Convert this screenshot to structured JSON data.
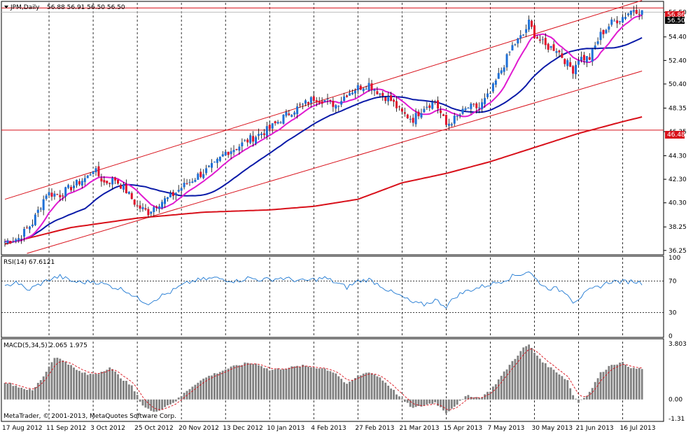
{
  "colors": {
    "background": "#ffffff",
    "grid": "#000000",
    "candle_up": "#1e6fd6",
    "candle_down": "#e0102a",
    "ma_fast": "#e01ad0",
    "ma_mid": "#0a1aa8",
    "ma_slow": "#d8101a",
    "channel": "#d8101a",
    "hline": "#d8101a",
    "rsi_line": "#1e78d2",
    "macd_bar": "#808080",
    "macd_signal": "#d8101a",
    "price_badge": "#d8101a"
  },
  "chart_data": {
    "type": "candlestick",
    "title": "JPM,Daily",
    "ohlc_readout": "56.88 56.91 56.50 56.50",
    "current_price_label": "56.86",
    "current_price_sublabel": "56.50",
    "level_label": "46.48",
    "price_ticks": [
      "56.50",
      "54.40",
      "52.40",
      "50.40",
      "48.35",
      "46.35",
      "44.30",
      "42.30",
      "40.30",
      "38.25",
      "36.25"
    ],
    "price_tick_values": [
      56.5,
      54.4,
      52.4,
      50.4,
      48.35,
      46.35,
      44.3,
      42.3,
      40.3,
      38.25,
      36.25
    ],
    "ylim": [
      36.0,
      57.3
    ],
    "x_labels": [
      "17 Aug 2012",
      "11 Sep 2012",
      "3 Oct 2012",
      "25 Oct 2012",
      "20 Nov 2012",
      "13 Dec 2012",
      "10 Jan 2013",
      "4 Feb 2013",
      "27 Feb 2013",
      "21 Mar 2013",
      "15 Apr 2013",
      "7 May 2013",
      "30 May 2013",
      "21 Jun 2013",
      "16 Jul 2013"
    ],
    "x_label_index": [
      0,
      16,
      32,
      48,
      64,
      80,
      96,
      112,
      128,
      144,
      160,
      176,
      192,
      208,
      224
    ],
    "n_bars": 232,
    "price_anchors": [
      [
        0,
        37.0
      ],
      [
        5,
        37.3
      ],
      [
        10,
        38.6
      ],
      [
        15,
        41.1
      ],
      [
        20,
        41.0
      ],
      [
        25,
        41.8
      ],
      [
        30,
        42.5
      ],
      [
        32,
        43.2
      ],
      [
        36,
        42.0
      ],
      [
        40,
        42.3
      ],
      [
        44,
        41.3
      ],
      [
        48,
        40.0
      ],
      [
        52,
        39.5
      ],
      [
        55,
        40.2
      ],
      [
        60,
        40.8
      ],
      [
        64,
        41.6
      ],
      [
        70,
        42.6
      ],
      [
        76,
        43.5
      ],
      [
        80,
        44.6
      ],
      [
        84,
        45.0
      ],
      [
        88,
        45.6
      ],
      [
        92,
        46.1
      ],
      [
        96,
        46.6
      ],
      [
        100,
        47.4
      ],
      [
        104,
        48.1
      ],
      [
        108,
        48.6
      ],
      [
        112,
        49.2
      ],
      [
        116,
        49.0
      ],
      [
        120,
        48.6
      ],
      [
        124,
        49.6
      ],
      [
        128,
        50.1
      ],
      [
        132,
        50.4
      ],
      [
        136,
        49.6
      ],
      [
        140,
        49.0
      ],
      [
        144,
        47.9
      ],
      [
        148,
        47.4
      ],
      [
        152,
        48.5
      ],
      [
        156,
        48.9
      ],
      [
        160,
        46.9
      ],
      [
        164,
        47.6
      ],
      [
        168,
        48.4
      ],
      [
        172,
        48.4
      ],
      [
        176,
        49.6
      ],
      [
        180,
        51.6
      ],
      [
        184,
        53.6
      ],
      [
        188,
        54.6
      ],
      [
        190,
        55.6
      ],
      [
        192,
        54.6
      ],
      [
        196,
        53.6
      ],
      [
        200,
        53.4
      ],
      [
        204,
        52.1
      ],
      [
        206,
        51.6
      ],
      [
        208,
        52.6
      ],
      [
        212,
        52.6
      ],
      [
        216,
        54.6
      ],
      [
        220,
        55.6
      ],
      [
        224,
        56.1
      ],
      [
        228,
        56.8
      ],
      [
        231,
        56.5
      ]
    ],
    "ma_slow_anchors": [
      [
        0,
        36.8
      ],
      [
        24,
        38.2
      ],
      [
        48,
        39.0
      ],
      [
        72,
        39.5
      ],
      [
        96,
        39.7
      ],
      [
        112,
        40.0
      ],
      [
        128,
        40.6
      ],
      [
        144,
        42.0
      ],
      [
        160,
        42.8
      ],
      [
        176,
        43.8
      ],
      [
        192,
        45.0
      ],
      [
        208,
        46.2
      ],
      [
        224,
        47.2
      ],
      [
        231,
        47.6
      ]
    ],
    "channel_lines": [
      {
        "from": [
          0,
          40.6
        ],
        "to": [
          231,
          57.5
        ]
      },
      {
        "from": [
          8,
          36.0
        ],
        "to": [
          231,
          51.5
        ]
      }
    ],
    "hlines": [
      56.86,
      46.48
    ],
    "rsi": {
      "label": "RSI(14) 67.6121",
      "ticks": [
        "100",
        "70",
        "30",
        "0"
      ],
      "tick_values": [
        100,
        70,
        30,
        0
      ],
      "levels": [
        70,
        30
      ],
      "anchors": [
        [
          0,
          62
        ],
        [
          4,
          70
        ],
        [
          8,
          58
        ],
        [
          12,
          65
        ],
        [
          16,
          72
        ],
        [
          20,
          76
        ],
        [
          24,
          70
        ],
        [
          28,
          68
        ],
        [
          32,
          70
        ],
        [
          36,
          66
        ],
        [
          40,
          62
        ],
        [
          44,
          58
        ],
        [
          48,
          48
        ],
        [
          52,
          42
        ],
        [
          56,
          50
        ],
        [
          60,
          56
        ],
        [
          64,
          64
        ],
        [
          68,
          70
        ],
        [
          72,
          72
        ],
        [
          76,
          74
        ],
        [
          80,
          72
        ],
        [
          84,
          70
        ],
        [
          88,
          74
        ],
        [
          92,
          72
        ],
        [
          96,
          72
        ],
        [
          100,
          74
        ],
        [
          104,
          72
        ],
        [
          108,
          70
        ],
        [
          112,
          72
        ],
        [
          116,
          74
        ],
        [
          120,
          68
        ],
        [
          124,
          62
        ],
        [
          128,
          70
        ],
        [
          132,
          72
        ],
        [
          136,
          65
        ],
        [
          140,
          56
        ],
        [
          144,
          50
        ],
        [
          148,
          42
        ],
        [
          152,
          40
        ],
        [
          156,
          46
        ],
        [
          160,
          38
        ],
        [
          164,
          52
        ],
        [
          168,
          58
        ],
        [
          172,
          62
        ],
        [
          176,
          66
        ],
        [
          180,
          70
        ],
        [
          184,
          76
        ],
        [
          188,
          80
        ],
        [
          190,
          83
        ],
        [
          192,
          74
        ],
        [
          196,
          62
        ],
        [
          200,
          60
        ],
        [
          204,
          55
        ],
        [
          206,
          44
        ],
        [
          208,
          48
        ],
        [
          212,
          58
        ],
        [
          216,
          64
        ],
        [
          220,
          70
        ],
        [
          224,
          69
        ],
        [
          228,
          70
        ],
        [
          231,
          67.6
        ]
      ]
    },
    "macd": {
      "label": "MACD(5,34,5) 2.065 1.975",
      "ticks": [
        "3.803",
        "0.00",
        "-1.31"
      ],
      "tick_values": [
        3.803,
        0,
        -1.31
      ],
      "ylim": [
        -1.4,
        3.95
      ],
      "anchors": [
        [
          0,
          1.2
        ],
        [
          6,
          0.8
        ],
        [
          10,
          0.6
        ],
        [
          14,
          1.6
        ],
        [
          18,
          2.9
        ],
        [
          22,
          2.6
        ],
        [
          26,
          2.0
        ],
        [
          30,
          1.7
        ],
        [
          34,
          1.8
        ],
        [
          38,
          2.2
        ],
        [
          42,
          1.5
        ],
        [
          46,
          0.9
        ],
        [
          50,
          -0.4
        ],
        [
          54,
          -0.9
        ],
        [
          58,
          -0.5
        ],
        [
          62,
          -0.1
        ],
        [
          66,
          0.6
        ],
        [
          70,
          1.2
        ],
        [
          74,
          1.6
        ],
        [
          78,
          1.9
        ],
        [
          82,
          2.2
        ],
        [
          88,
          2.5
        ],
        [
          92,
          2.4
        ],
        [
          96,
          2.0
        ],
        [
          100,
          2.1
        ],
        [
          104,
          2.2
        ],
        [
          108,
          2.3
        ],
        [
          112,
          2.2
        ],
        [
          116,
          2.1
        ],
        [
          120,
          1.8
        ],
        [
          124,
          1.0
        ],
        [
          128,
          1.6
        ],
        [
          132,
          1.9
        ],
        [
          136,
          1.5
        ],
        [
          140,
          0.8
        ],
        [
          144,
          0.0
        ],
        [
          148,
          -0.6
        ],
        [
          152,
          -0.4
        ],
        [
          156,
          -0.2
        ],
        [
          160,
          -0.9
        ],
        [
          164,
          -0.3
        ],
        [
          168,
          0.3
        ],
        [
          172,
          0.1
        ],
        [
          176,
          0.6
        ],
        [
          180,
          1.6
        ],
        [
          184,
          2.6
        ],
        [
          188,
          3.5
        ],
        [
          190,
          3.75
        ],
        [
          192,
          3.2
        ],
        [
          196,
          2.4
        ],
        [
          200,
          1.9
        ],
        [
          204,
          1.3
        ],
        [
          206,
          0.3
        ],
        [
          208,
          -0.2
        ],
        [
          212,
          0.5
        ],
        [
          216,
          1.8
        ],
        [
          220,
          2.4
        ],
        [
          224,
          2.5
        ],
        [
          228,
          2.1
        ],
        [
          231,
          2.1
        ]
      ]
    },
    "grid": true
  },
  "footer": {
    "copyright": "MetaTrader, © 2001-2013, MetaQuotes Software Corp."
  }
}
